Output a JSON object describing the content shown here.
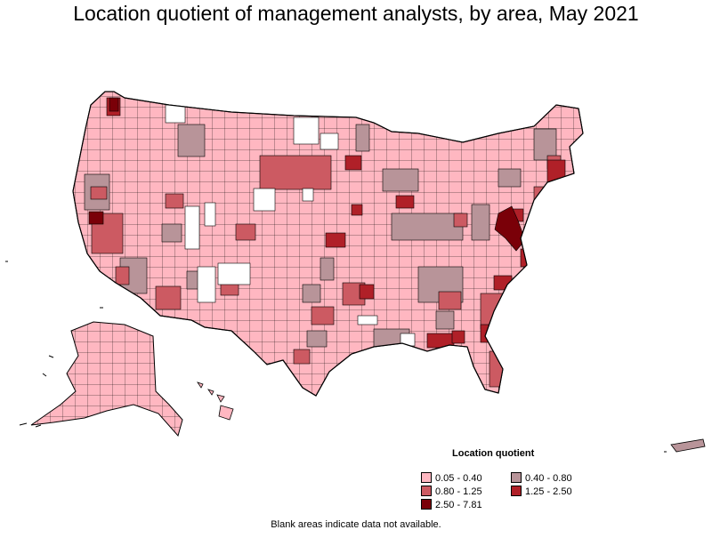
{
  "title": "Location quotient of management analysts, by area, May 2021",
  "legend": {
    "title": "Location quotient",
    "items": [
      {
        "label": "0.05 - 0.40",
        "color": "#ffb7c1"
      },
      {
        "label": "0.40 - 0.80",
        "color": "#b89499"
      },
      {
        "label": "0.80 - 1.25",
        "color": "#cc5a62"
      },
      {
        "label": "1.25 - 2.50",
        "color": "#b02028"
      },
      {
        "label": "2.50 - 7.81",
        "color": "#7a0008"
      }
    ]
  },
  "note": "Blank areas indicate data not available.",
  "colors": {
    "q1": "#ffb7c1",
    "q2": "#b89499",
    "q3": "#cc5a62",
    "q4": "#b02028",
    "q5": "#7a0008",
    "blank": "#ffffff",
    "border": "#000000"
  }
}
